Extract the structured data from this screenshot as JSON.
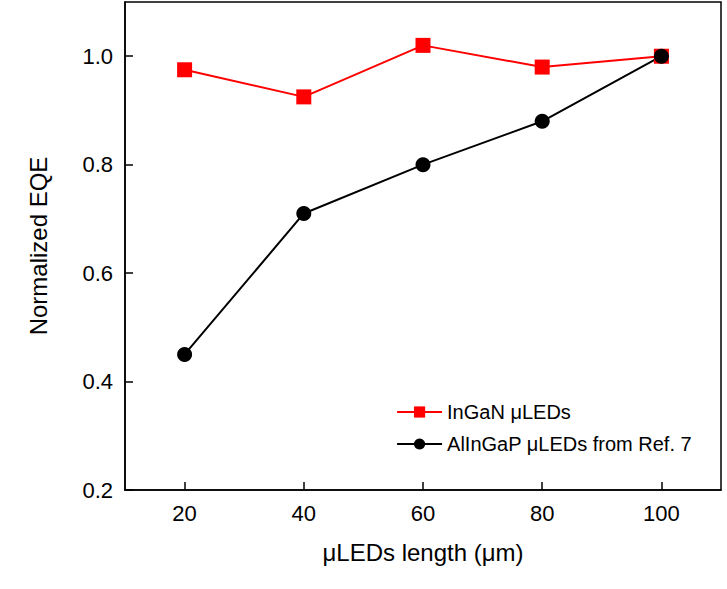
{
  "chart_data": {
    "type": "line",
    "x_label": "μLEDs length (μm)",
    "y_label": "Normalized EQE",
    "x": [
      20,
      40,
      60,
      80,
      100
    ],
    "series": [
      {
        "name": "InGaN μLEDs",
        "color": "#ff0000",
        "marker": "square",
        "line_style": "solid",
        "values": [
          0.975,
          0.925,
          1.02,
          0.98,
          1.0
        ]
      },
      {
        "name": "AlInGaP μLEDs from Ref. 7",
        "color": "#000000",
        "marker": "circle",
        "line_style": "solid",
        "values": [
          0.45,
          0.71,
          0.8,
          0.88,
          1.0
        ]
      }
    ],
    "xlim": [
      10,
      110
    ],
    "xticks": [
      20,
      40,
      60,
      80,
      100
    ],
    "ylim": [
      0.2,
      1.1
    ],
    "yticks": [
      0.2,
      0.4,
      0.6,
      0.8,
      {
        "value": 1,
        "label": "1.0"
      }
    ],
    "grid": false,
    "legend": "lower right"
  }
}
